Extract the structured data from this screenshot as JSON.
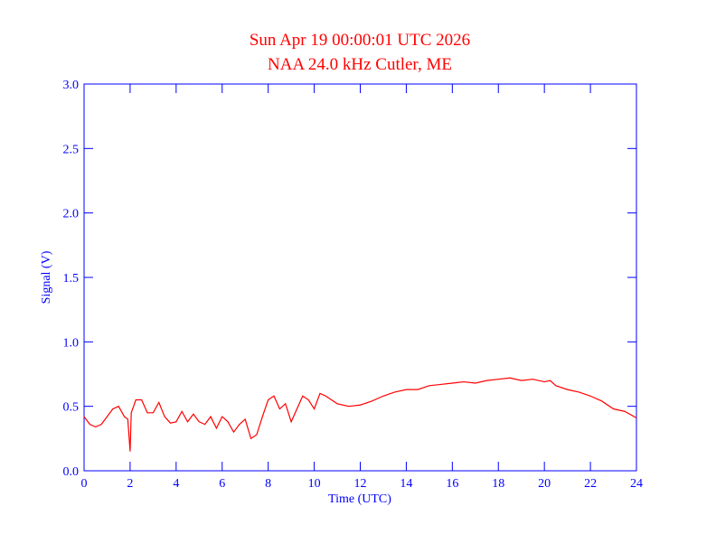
{
  "chart_data": {
    "type": "line",
    "title": "Sun Apr 19 00:00:01 UTC 2026",
    "subtitle": "NAA 24.0 kHz Cutler, ME",
    "x_label": "Time (UTC)",
    "y_label": "Signal (V)",
    "x": [
      0,
      0.25,
      0.5,
      0.75,
      1,
      1.25,
      1.5,
      1.75,
      1.9,
      2,
      2.05,
      2.25,
      2.5,
      2.75,
      3,
      3.25,
      3.5,
      3.75,
      4,
      4.25,
      4.5,
      4.75,
      5,
      5.25,
      5.5,
      5.75,
      6,
      6.25,
      6.5,
      6.75,
      7,
      7.25,
      7.5,
      7.75,
      8,
      8.25,
      8.5,
      8.75,
      9,
      9.25,
      9.5,
      9.75,
      10,
      10.25,
      10.5,
      11,
      11.5,
      12,
      12.5,
      13,
      13.5,
      14,
      14.5,
      15,
      15.5,
      16,
      16.5,
      17,
      17.5,
      18,
      18.5,
      19,
      19.5,
      20,
      20.25,
      20.5,
      21,
      21.5,
      22,
      22.5,
      23,
      23.5,
      24
    ],
    "series": [
      {
        "name": "Signal",
        "color": "#ff0000",
        "values": [
          0.42,
          0.36,
          0.34,
          0.36,
          0.42,
          0.48,
          0.5,
          0.42,
          0.4,
          0.15,
          0.45,
          0.55,
          0.55,
          0.45,
          0.45,
          0.53,
          0.42,
          0.37,
          0.38,
          0.46,
          0.38,
          0.44,
          0.38,
          0.36,
          0.42,
          0.33,
          0.42,
          0.38,
          0.3,
          0.36,
          0.4,
          0.25,
          0.28,
          0.42,
          0.55,
          0.58,
          0.48,
          0.52,
          0.38,
          0.48,
          0.58,
          0.55,
          0.48,
          0.6,
          0.58,
          0.52,
          0.5,
          0.51,
          0.54,
          0.58,
          0.61,
          0.63,
          0.63,
          0.66,
          0.67,
          0.68,
          0.69,
          0.68,
          0.7,
          0.71,
          0.72,
          0.7,
          0.71,
          0.69,
          0.7,
          0.66,
          0.63,
          0.61,
          0.58,
          0.54,
          0.48,
          0.46,
          0.41
        ]
      }
    ],
    "xlim": [
      0,
      24
    ],
    "xticks": [
      0,
      2,
      4,
      6,
      8,
      10,
      12,
      14,
      16,
      18,
      20,
      22,
      24
    ],
    "ylim": [
      0,
      3
    ],
    "yticks": [
      {
        "value": 0,
        "label": "0.0"
      },
      0.5,
      {
        "value": 1,
        "label": "1.0"
      },
      1.5,
      {
        "value": 2,
        "label": "2.0"
      },
      2.5,
      {
        "value": 3,
        "label": "3.0"
      }
    ],
    "axis_color": "#0000ff",
    "title_color": "#ff0000"
  }
}
